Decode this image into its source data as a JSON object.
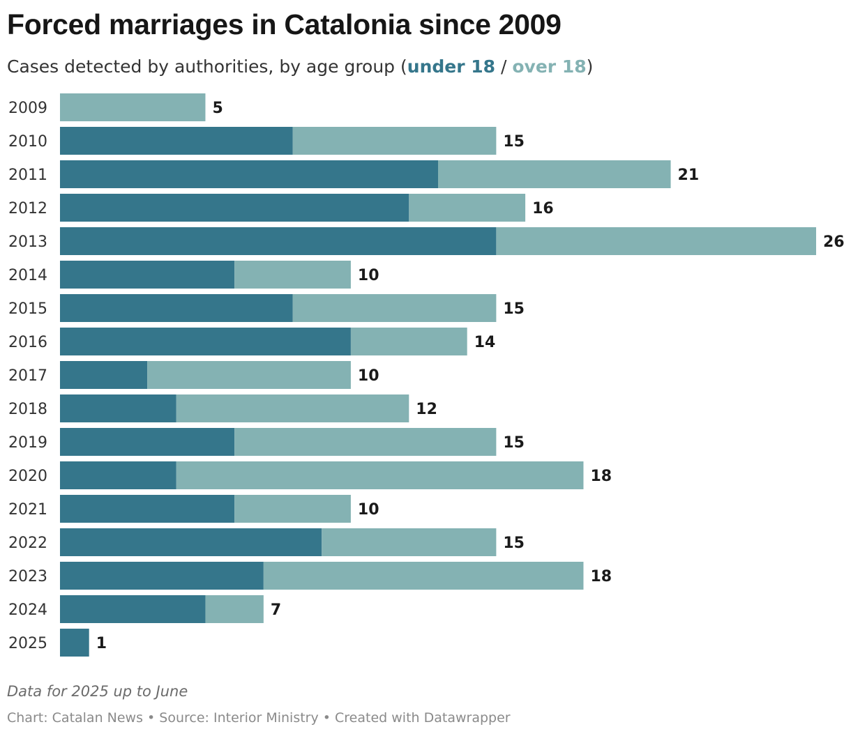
{
  "header": {
    "title": "Forced marriages in Catalonia since 2009",
    "subtitle_prefix": "Cases detected by authorities, by age group (",
    "legend_under": "under 18",
    "legend_sep": " / ",
    "legend_over": "over 18",
    "subtitle_suffix": ")"
  },
  "chart_data": {
    "type": "bar",
    "orientation": "horizontal",
    "stacked": true,
    "title": "Forced marriages in Catalonia since 2009",
    "subtitle": "Cases detected by authorities, by age group (under 18 / over 18)",
    "categories": [
      "2009",
      "2010",
      "2011",
      "2012",
      "2013",
      "2014",
      "2015",
      "2016",
      "2017",
      "2018",
      "2019",
      "2020",
      "2021",
      "2022",
      "2023",
      "2024",
      "2025"
    ],
    "series": [
      {
        "name": "under 18",
        "color": "#35768b",
        "values": [
          0,
          8,
          13,
          12,
          15,
          6,
          8,
          10,
          3,
          4,
          6,
          4,
          6,
          9,
          7,
          5,
          1
        ]
      },
      {
        "name": "over 18",
        "color": "#84b2b3",
        "values": [
          5,
          7,
          8,
          4,
          11,
          4,
          7,
          4,
          7,
          8,
          9,
          14,
          4,
          6,
          11,
          2,
          0
        ]
      }
    ],
    "totals": [
      5,
      15,
      21,
      16,
      26,
      10,
      15,
      14,
      10,
      12,
      15,
      18,
      10,
      15,
      18,
      7,
      1
    ],
    "xlim": [
      0,
      26
    ],
    "grid": false,
    "legend": "in subtitle"
  },
  "footer": {
    "note": "Data for 2025 up to June",
    "credits": "Chart: Catalan News • Source: Interior Ministry • Created with Datawrapper"
  }
}
